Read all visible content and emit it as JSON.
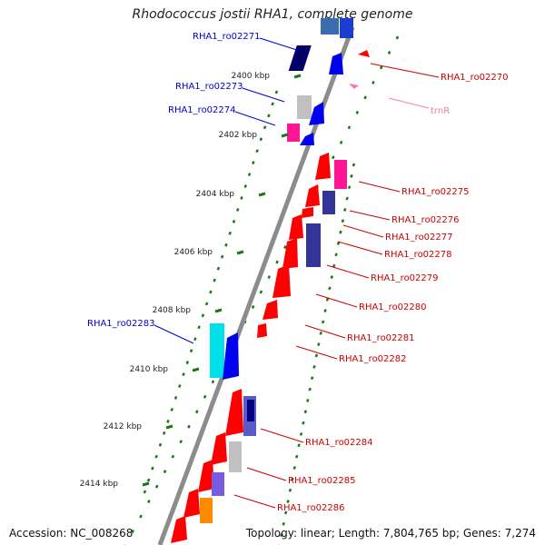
{
  "title": "Rhodococcus jostii RHA1, complete genome",
  "footer": {
    "accession": "Accession: NC_008268",
    "summary": "Topology: linear; Length: 7,804,765 bp; Genes: 7,274"
  },
  "scale": {
    "ticks": [
      "2400 kbp",
      "2402 kbp",
      "2404 kbp",
      "2406 kbp",
      "2408 kbp",
      "2410 kbp",
      "2412 kbp",
      "2414 kbp"
    ]
  },
  "colors": {
    "backbone": "#8c8c8c",
    "left_label": "#0000cc",
    "right_label": "#cc0000",
    "trna_label": "#ee7fb0",
    "dots": "#1a7a1a"
  },
  "genes": {
    "left": [
      "RHA1_ro02271",
      "RHA1_ro02273",
      "RHA1_ro02274",
      "RHA1_ro02283"
    ],
    "right": [
      "RHA1_ro02270",
      "RHA1_ro02275",
      "RHA1_ro02276",
      "RHA1_ro02277",
      "RHA1_ro02278",
      "RHA1_ro02279",
      "RHA1_ro02280",
      "RHA1_ro02281",
      "RHA1_ro02282",
      "RHA1_ro02284",
      "RHA1_ro02285",
      "RHA1_ro02286"
    ],
    "trna": "trnR"
  }
}
